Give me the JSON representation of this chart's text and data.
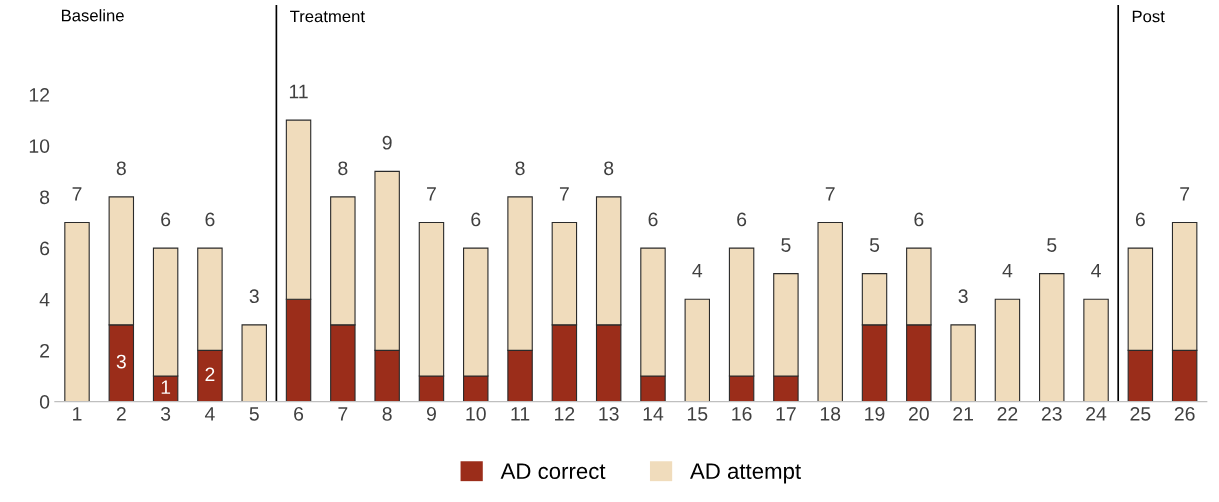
{
  "chart_data": {
    "type": "bar",
    "stacked": true,
    "x": [
      1,
      2,
      3,
      4,
      5,
      6,
      7,
      8,
      9,
      10,
      11,
      12,
      13,
      14,
      15,
      16,
      17,
      18,
      19,
      20,
      21,
      22,
      23,
      24,
      25,
      26
    ],
    "xlim": [
      0.5,
      26.5
    ],
    "xticks": [
      1,
      2,
      3,
      4,
      5,
      6,
      7,
      8,
      9,
      10,
      11,
      12,
      13,
      14,
      15,
      16,
      17,
      18,
      19,
      20,
      21,
      22,
      23,
      24,
      25,
      26
    ],
    "ylim": [
      0,
      15.5
    ],
    "yticks": [
      0,
      2,
      4,
      6,
      8,
      10,
      12
    ],
    "series": [
      {
        "name": "AD correct",
        "color": "#9b2d1a",
        "values": [
          0,
          3,
          1,
          2,
          0,
          4,
          3,
          2,
          1,
          1,
          2,
          3,
          3,
          1,
          0,
          1,
          1,
          0,
          3,
          3,
          0,
          0,
          0,
          0,
          2,
          2
        ],
        "value_labels": [
          null,
          "3",
          "1",
          "2",
          null,
          null,
          null,
          null,
          null,
          null,
          null,
          null,
          null,
          null,
          null,
          null,
          null,
          null,
          null,
          null,
          null,
          null,
          null,
          null,
          null,
          null
        ]
      },
      {
        "name": "AD attempt",
        "color": "#f0dcbc",
        "values": [
          7,
          5,
          5,
          4,
          3,
          7,
          5,
          7,
          6,
          5,
          6,
          4,
          5,
          5,
          4,
          5,
          4,
          7,
          2,
          3,
          3,
          4,
          5,
          4,
          4,
          5
        ]
      }
    ],
    "totals": [
      "7",
      "8",
      "6",
      "6",
      "3",
      "11",
      "8",
      "9",
      "7",
      "6",
      "8",
      "7",
      "8",
      "6",
      "4",
      "6",
      "5",
      "7",
      "5",
      "6",
      "3",
      "4",
      "5",
      "4",
      "6",
      "7"
    ],
    "ref_lines": [
      {
        "axis": "x",
        "value": 5.5,
        "label": "Treatment",
        "color": "#000000"
      },
      {
        "axis": "x",
        "value": 24.5,
        "label": "Post",
        "color": "#000000"
      }
    ],
    "annotations": [
      "Baseline"
    ],
    "grid": false,
    "legend": "bottom"
  }
}
